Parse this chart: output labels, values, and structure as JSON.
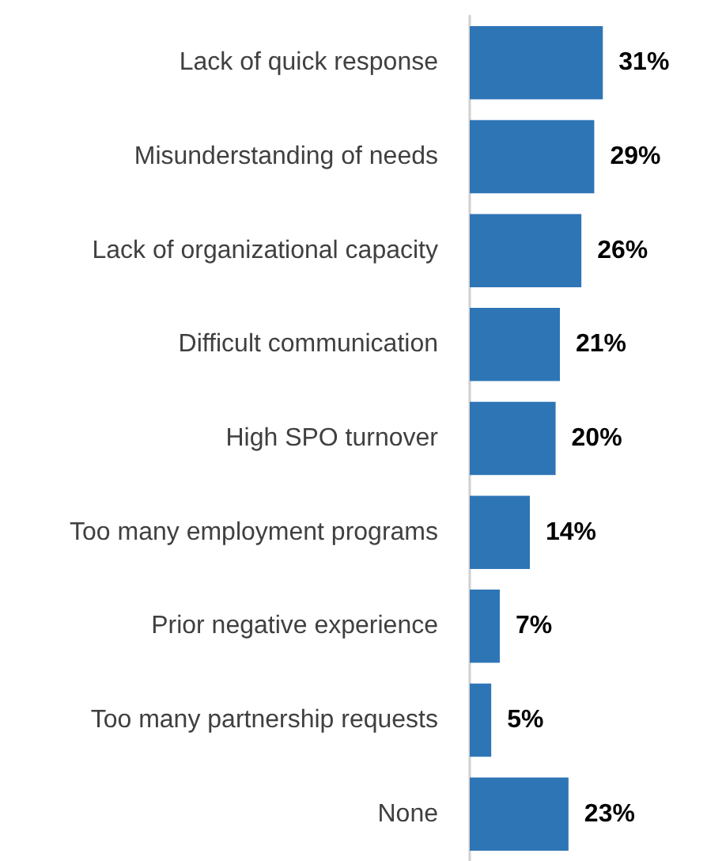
{
  "chart_data": {
    "type": "bar",
    "orientation": "horizontal",
    "categories": [
      "Lack of quick response",
      "Misunderstanding of needs",
      "Lack of organizational capacity",
      "Difficult communication",
      "High SPO turnover",
      "Too many employment programs",
      "Prior negative experience",
      "Too many partnership requests",
      "None"
    ],
    "values": [
      31,
      29,
      26,
      21,
      20,
      14,
      7,
      5,
      23
    ],
    "value_labels": [
      "31%",
      "29%",
      "26%",
      "21%",
      "20%",
      "14%",
      "7%",
      "5%",
      "23%"
    ],
    "color": "#2e75b6"
  }
}
